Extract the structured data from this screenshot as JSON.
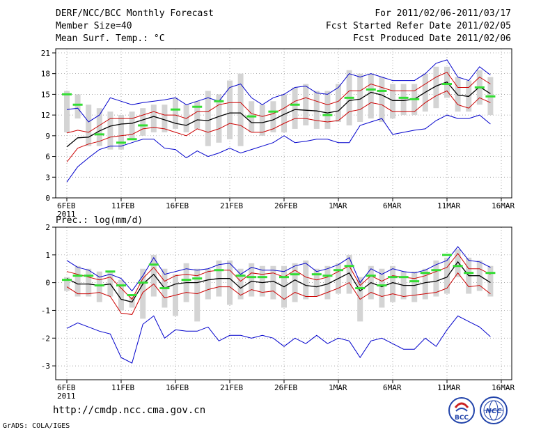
{
  "header": {
    "title": "DERF/NCC/BCC Monthly Forecast",
    "member_size": "Member Size=40",
    "variable": "Mean Surf. Temp.: °C",
    "period": "For 2011/02/06-2011/03/17",
    "started": "Fcst Started Refer Date 2011/02/05",
    "produced": "Fcst Produced Date 2011/02/06"
  },
  "footer": {
    "url": "http://cmdp.ncc.cma.gov.cn",
    "grads": "GrADS: COLA/IGES",
    "logo_bcc": "BCC",
    "logo_ncc": "NCC"
  },
  "colors": {
    "envelope": "#0000cc",
    "spread": "#cc0000",
    "mean": "#000000",
    "box": "#d4d4d4",
    "observed": "#33dd33",
    "grid": "#888888"
  },
  "chart_data": [
    {
      "type": "line",
      "title": "Mean Surf. Temp.: °C",
      "x_tick_labels": [
        "6FEB",
        "11FEB",
        "16FEB",
        "21FEB",
        "26FEB",
        "1MAR",
        "6MAR",
        "11MAR",
        "16MAR"
      ],
      "x_year_label": "2011",
      "ylim": [
        0,
        21.6
      ],
      "y_ticks": [
        0,
        3,
        6,
        9,
        12,
        15,
        18,
        21
      ],
      "series": [
        {
          "name": "max",
          "color": "blue",
          "values": [
            2.3,
            4.5,
            5.8,
            7.0,
            7.5,
            7.5,
            8.0,
            8.5,
            8.5,
            7.2,
            7.0,
            5.8,
            6.8,
            6.0,
            6.5,
            7.2,
            6.5,
            7.0,
            7.5,
            8.0,
            9.0,
            8.0,
            8.2,
            8.5,
            8.5,
            8.0,
            8.0,
            10.5,
            11.0,
            11.5,
            9.2,
            9.5,
            9.8,
            10.0,
            11.2,
            12.0,
            11.5,
            11.5,
            12.0,
            10.7
          ]
        },
        {
          "name": "min",
          "color": "blue",
          "values": [
            12.8,
            13.0,
            11.0,
            12.0,
            14.5,
            14.0,
            13.5,
            13.8,
            14.0,
            14.2,
            14.5,
            13.5,
            14.0,
            14.5,
            14.0,
            16.0,
            16.5,
            14.5,
            13.5,
            14.5,
            15.0,
            16.0,
            16.2,
            15.2,
            15.0,
            16.0,
            18.0,
            17.5,
            18.0,
            17.5,
            17.0,
            17.0,
            17.0,
            18.0,
            19.5,
            20.0,
            17.5,
            17.0,
            19.0,
            17.8
          ]
        },
        {
          "name": "upper",
          "color": "red",
          "values": [
            9.4,
            9.8,
            9.5,
            10.5,
            11.5,
            11.5,
            11.5,
            12.0,
            12.5,
            12.0,
            12.0,
            11.5,
            12.5,
            12.5,
            13.5,
            13.8,
            13.8,
            12.2,
            11.8,
            12.2,
            13.0,
            14.0,
            14.5,
            14.0,
            13.5,
            14.0,
            15.5,
            15.5,
            16.5,
            16.0,
            15.5,
            15.5,
            15.5,
            16.5,
            17.5,
            18.2,
            16.0,
            16.0,
            17.5,
            16.5
          ]
        },
        {
          "name": "lower",
          "color": "red",
          "values": [
            5.2,
            7.2,
            7.8,
            8.2,
            8.8,
            9.0,
            9.2,
            10.0,
            10.2,
            10.0,
            9.5,
            9.0,
            10.0,
            9.5,
            10.0,
            10.8,
            10.5,
            9.5,
            9.5,
            10.0,
            10.8,
            11.5,
            11.5,
            11.2,
            11.0,
            11.2,
            12.5,
            12.8,
            13.8,
            13.5,
            12.5,
            12.5,
            12.5,
            13.8,
            14.8,
            15.5,
            13.5,
            13.0,
            14.5,
            13.8
          ]
        },
        {
          "name": "mean",
          "color": "black",
          "values": [
            7.4,
            8.7,
            8.8,
            9.7,
            10.4,
            10.7,
            10.8,
            11.3,
            11.8,
            11.3,
            10.8,
            10.5,
            11.3,
            11.2,
            11.8,
            12.3,
            12.3,
            10.9,
            10.9,
            11.3,
            12.1,
            12.8,
            12.7,
            12.6,
            12.3,
            12.6,
            14.1,
            14.3,
            15.3,
            14.9,
            14.1,
            14.1,
            14.3,
            15.3,
            16.2,
            16.8,
            14.9,
            14.7,
            16.1,
            15.1
          ]
        },
        {
          "name": "box_top",
          "color": "gray",
          "values": [
            15.5,
            15.0,
            13.5,
            13.0,
            12.5,
            12.0,
            12.5,
            13.0,
            13.5,
            13.5,
            14.5,
            13.5,
            14.0,
            15.5,
            15.0,
            17.0,
            18.0,
            14.0,
            13.5,
            14.0,
            15.0,
            16.0,
            16.5,
            15.5,
            15.5,
            16.5,
            18.5,
            18.0,
            18.0,
            17.5,
            16.5,
            16.5,
            16.5,
            18.0,
            19.0,
            19.0,
            17.5,
            17.0,
            18.5,
            17.5
          ]
        },
        {
          "name": "box_bottom",
          "color": "gray",
          "values": [
            9.5,
            11.5,
            7.5,
            7.5,
            7.0,
            7.0,
            8.5,
            9.0,
            9.5,
            9.5,
            10.0,
            9.5,
            10.0,
            7.5,
            8.0,
            8.5,
            7.5,
            9.5,
            9.0,
            9.5,
            9.5,
            10.0,
            10.5,
            10.0,
            10.0,
            11.0,
            10.5,
            11.0,
            11.5,
            11.0,
            11.5,
            12.0,
            12.0,
            12.5,
            13.0,
            14.5,
            12.5,
            12.5,
            13.5,
            12.0
          ]
        },
        {
          "name": "observed",
          "color": "green",
          "values": [
            15.0,
            13.5,
            null,
            9.2,
            null,
            8.0,
            8.5,
            10.5,
            null,
            null,
            12.8,
            null,
            13.2,
            null,
            14.0,
            null,
            null,
            11.8,
            null,
            12.5,
            null,
            13.5,
            null,
            null,
            12.0,
            null,
            14.5,
            null,
            15.7,
            15.5,
            null,
            14.5,
            14.3,
            null,
            null,
            16.5,
            null,
            null,
            16.0,
            14.7
          ]
        }
      ]
    },
    {
      "type": "line",
      "title": "Prec.: log(mm/d)",
      "x_tick_labels": [
        "6FEB",
        "11FEB",
        "16FEB",
        "21FEB",
        "26FEB",
        "1MAR",
        "6MAR",
        "11MAR",
        "16MAR"
      ],
      "x_year_label": "2011",
      "ylim": [
        -3.5,
        2
      ],
      "y_ticks": [
        -3,
        -2,
        -1,
        0,
        1,
        2
      ],
      "series": [
        {
          "name": "max",
          "color": "blue",
          "values": [
            -1.65,
            -1.45,
            -1.6,
            -1.75,
            -1.85,
            -2.7,
            -2.9,
            -1.5,
            -1.2,
            -2.0,
            -1.7,
            -1.75,
            -1.75,
            -1.6,
            -2.1,
            -1.9,
            -1.9,
            -2.0,
            -1.9,
            -2.0,
            -2.3,
            -2.0,
            -2.2,
            -1.9,
            -2.2,
            -2.0,
            -2.1,
            -2.7,
            -2.1,
            -2.0,
            -2.2,
            -2.4,
            -2.4,
            -2.0,
            -2.3,
            -1.7,
            -1.2,
            -1.4,
            -1.6,
            -1.95
          ]
        },
        {
          "name": "min",
          "color": "blue",
          "values": [
            0.8,
            0.55,
            0.45,
            0.2,
            0.3,
            0.15,
            -0.3,
            0.25,
            0.9,
            0.3,
            0.4,
            0.5,
            0.45,
            0.5,
            0.65,
            0.7,
            0.3,
            0.55,
            0.45,
            0.45,
            0.4,
            0.6,
            0.7,
            0.4,
            0.5,
            0.65,
            0.9,
            0.0,
            0.5,
            0.3,
            0.5,
            0.4,
            0.35,
            0.45,
            0.65,
            0.8,
            1.3,
            0.8,
            0.75,
            0.55
          ]
        },
        {
          "name": "upper",
          "color": "red",
          "values": [
            0.4,
            0.3,
            0.2,
            0.1,
            0.2,
            -0.2,
            -0.6,
            0.15,
            0.55,
            0.05,
            0.25,
            0.3,
            0.25,
            0.4,
            0.45,
            0.45,
            0.05,
            0.35,
            0.3,
            0.35,
            0.2,
            0.45,
            0.2,
            0.1,
            0.2,
            0.4,
            0.6,
            -0.1,
            0.25,
            0.05,
            0.25,
            0.2,
            0.15,
            0.25,
            0.4,
            0.55,
            1.05,
            0.5,
            0.5,
            0.3
          ]
        },
        {
          "name": "lower",
          "color": "red",
          "values": [
            -0.15,
            -0.4,
            -0.4,
            -0.35,
            -0.5,
            -1.1,
            -1.15,
            -0.35,
            -0.05,
            -0.55,
            -0.45,
            -0.35,
            -0.4,
            -0.25,
            -0.15,
            -0.15,
            -0.45,
            -0.25,
            -0.35,
            -0.3,
            -0.6,
            -0.35,
            -0.5,
            -0.5,
            -0.35,
            -0.2,
            0.0,
            -0.6,
            -0.35,
            -0.5,
            -0.4,
            -0.5,
            -0.45,
            -0.4,
            -0.35,
            -0.2,
            0.35,
            -0.15,
            -0.1,
            -0.4
          ]
        },
        {
          "name": "mean",
          "color": "black",
          "values": [
            0.15,
            -0.05,
            -0.05,
            -0.1,
            -0.05,
            -0.6,
            -0.7,
            -0.05,
            0.3,
            -0.2,
            -0.05,
            0.0,
            0.0,
            0.1,
            0.15,
            0.15,
            -0.2,
            0.05,
            0.0,
            0.05,
            -0.15,
            0.1,
            -0.1,
            -0.15,
            -0.05,
            0.15,
            0.35,
            -0.3,
            0.0,
            -0.15,
            0.0,
            -0.1,
            -0.1,
            0.0,
            0.05,
            0.2,
            0.75,
            0.25,
            0.25,
            0.0
          ]
        },
        {
          "name": "box_top",
          "color": "gray",
          "values": [
            0.2,
            0.6,
            0.5,
            0.4,
            0.4,
            0.1,
            -0.5,
            0.5,
            1.0,
            0.5,
            0.3,
            0.7,
            0.5,
            0.5,
            0.8,
            0.8,
            0.5,
            0.7,
            0.6,
            0.6,
            0.6,
            0.7,
            0.8,
            0.5,
            0.6,
            0.7,
            1.0,
            0.2,
            0.6,
            0.5,
            0.6,
            0.4,
            0.4,
            0.5,
            0.8,
            0.9,
            1.2,
            0.9,
            0.8,
            0.6
          ]
        },
        {
          "name": "box_bottom",
          "color": "gray",
          "values": [
            -0.3,
            -0.5,
            -0.5,
            -0.7,
            -0.5,
            -1.0,
            -0.9,
            -1.3,
            -0.5,
            -0.9,
            -1.2,
            -0.7,
            -1.4,
            -0.6,
            -0.5,
            -0.8,
            -0.6,
            -0.5,
            -0.5,
            -0.6,
            -0.9,
            -0.7,
            -0.6,
            -0.5,
            -0.6,
            -0.4,
            -0.4,
            -1.4,
            -0.6,
            -0.9,
            -0.7,
            -0.6,
            -0.7,
            -0.6,
            -0.5,
            -0.4,
            0.2,
            -0.4,
            -0.3,
            -0.5
          ]
        },
        {
          "name": "observed",
          "color": "green",
          "values": [
            0.1,
            0.25,
            0.25,
            -0.1,
            0.4,
            -0.1,
            -0.45,
            0.0,
            0.65,
            -0.2,
            null,
            0.1,
            0.15,
            null,
            0.45,
            null,
            0.25,
            0.2,
            0.2,
            null,
            0.2,
            0.3,
            null,
            0.3,
            0.25,
            0.45,
            0.6,
            -0.2,
            0.25,
            -0.1,
            0.2,
            0.2,
            0.05,
            0.35,
            0.45,
            1.0,
            0.6,
            0.35,
            null,
            0.35
          ]
        }
      ]
    }
  ]
}
